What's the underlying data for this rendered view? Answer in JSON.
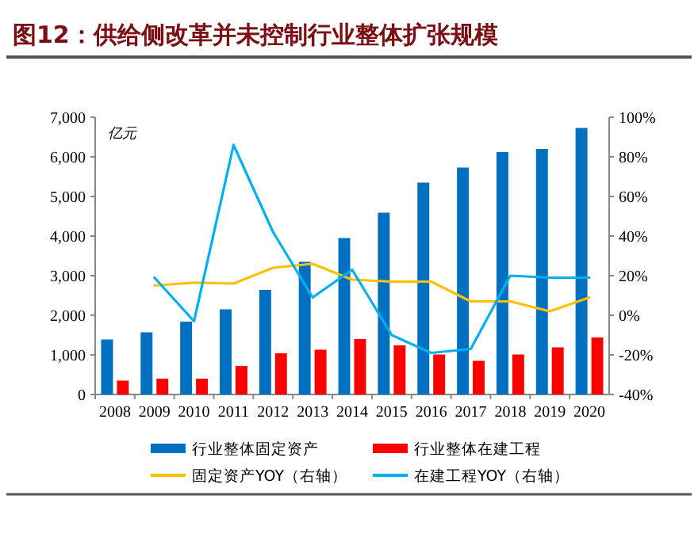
{
  "chart_data": {
    "type": "bar",
    "title": "图12：供给侧改革并未控制行业整体扩张规模",
    "ylabel": "亿元",
    "legend": "bottom",
    "grid": false,
    "categories": [
      "2008",
      "2009",
      "2010",
      "2011",
      "2012",
      "2013",
      "2014",
      "2015",
      "2016",
      "2017",
      "2018",
      "2019",
      "2020"
    ],
    "series": [
      {
        "name": "行业整体固定资产",
        "color": "#0070c0",
        "values": [
          1390,
          1570,
          1840,
          2150,
          2640,
          3350,
          3950,
          4590,
          5350,
          5730,
          6120,
          6200,
          6730
        ]
      },
      {
        "name": "行业整体在建工程",
        "color": "#ff0000",
        "values": [
          350,
          400,
          400,
          720,
          1040,
          1130,
          1400,
          1240,
          1010,
          850,
          1010,
          1190,
          1440
        ]
      },
      {
        "name": "固定资产YOY（右轴）",
        "type": "line",
        "axis": "y2",
        "color": "#ffc000",
        "values": [
          null,
          15,
          16.5,
          16,
          24,
          26,
          18,
          17,
          17,
          7,
          7,
          2,
          9
        ]
      },
      {
        "name": "在建工程YOY（右轴）",
        "type": "line",
        "axis": "y2",
        "color": "#00b0f0",
        "values": [
          null,
          19,
          -3,
          86,
          42,
          9,
          23,
          -10,
          -19,
          -17,
          20,
          19,
          19
        ]
      }
    ],
    "ylim": [
      0,
      7000
    ],
    "yticks": [
      {
        "value": 0,
        "label": "0"
      },
      {
        "value": 1000,
        "label": "1,000"
      },
      {
        "value": 2000,
        "label": "2,000"
      },
      {
        "value": 3000,
        "label": "3,000"
      },
      {
        "value": 4000,
        "label": "4,000"
      },
      {
        "value": 5000,
        "label": "5,000"
      },
      {
        "value": 6000,
        "label": "6,000"
      },
      {
        "value": 7000,
        "label": "7,000"
      }
    ],
    "y2lim": [
      -40,
      100
    ],
    "y2ticks": [
      {
        "value": -40,
        "label": "-40%"
      },
      {
        "value": -20,
        "label": "-20%"
      },
      {
        "value": 0,
        "label": "0%"
      },
      {
        "value": 20,
        "label": "20%"
      },
      {
        "value": 40,
        "label": "40%"
      },
      {
        "value": 60,
        "label": "60%"
      },
      {
        "value": 80,
        "label": "80%"
      },
      {
        "value": 100,
        "label": "100%"
      }
    ]
  }
}
